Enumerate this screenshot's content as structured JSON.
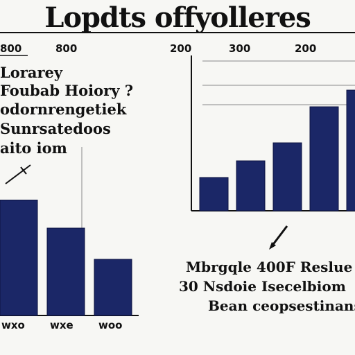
{
  "title": "Lopdts offyolleres",
  "left_panel": {
    "tick_labels": [
      "800",
      "800"
    ],
    "text_lines": [
      "Lorarey",
      "Foubab Hoiory ?",
      "odornrengetiek",
      "Sunrsatedoos",
      "aito iom"
    ],
    "x_labels": [
      "wxo",
      "wxe",
      "woo"
    ]
  },
  "right_panel": {
    "tick_labels": [
      "200",
      "300",
      "200"
    ],
    "caption_lines": [
      "Mbrgqle 400F Reslue",
      "30 Nsdoie Isecelbiom",
      "Bean ceopsestinans"
    ]
  },
  "colors": {
    "bar": "#1b2767",
    "axis": "#111111",
    "grid": "#8a8a8a",
    "background": "#f7f7f4"
  },
  "chart_data": [
    {
      "type": "bar",
      "categories": [
        "wxo",
        "wxe",
        "woo"
      ],
      "values": [
        7.4,
        5.6,
        3.6
      ],
      "ylim": [
        0,
        10
      ],
      "grid": false
    },
    {
      "type": "bar",
      "categories": [
        "",
        "",
        "",
        "",
        ""
      ],
      "values": [
        2.4,
        3.6,
        4.9,
        7.5,
        8.7
      ],
      "ylim": [
        0,
        10
      ],
      "grid": false
    }
  ]
}
